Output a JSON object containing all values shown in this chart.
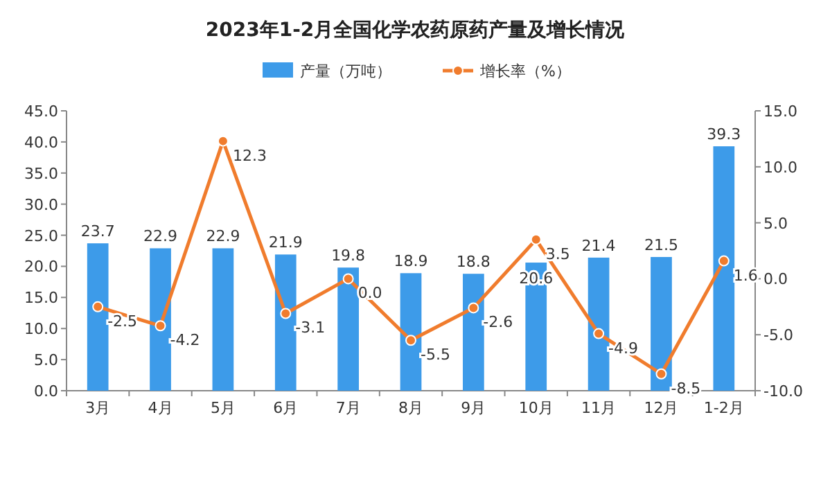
{
  "chart_data": {
    "type": "bar",
    "title": "2023年1-2月全国化学农药原药产量及增长情况",
    "categories": [
      "3月",
      "4月",
      "5月",
      "6月",
      "7月",
      "8月",
      "9月",
      "10月",
      "11月",
      "12月",
      "1-2月"
    ],
    "series": [
      {
        "name": "产量（万吨）",
        "color": "#3d9be9",
        "values": [
          23.7,
          22.9,
          22.9,
          21.9,
          19.8,
          18.9,
          18.8,
          20.6,
          21.4,
          21.5,
          39.3
        ],
        "value_labels": [
          "23.7",
          "22.9",
          "22.9",
          "21.9",
          "19.8",
          "18.9",
          "18.8",
          "20.6",
          "21.4",
          "21.5",
          "39.3"
        ]
      },
      {
        "name": "增长率（%）",
        "type": "line",
        "axis": "y2",
        "color": "#f07c2d",
        "marker": "circle",
        "values": [
          -2.5,
          -4.2,
          12.3,
          -3.1,
          0.0,
          -5.5,
          -2.6,
          3.5,
          -4.9,
          -8.5,
          1.6
        ],
        "value_labels": [
          "-2.5",
          "-4.2",
          "12.3",
          "-3.1",
          "0.0",
          "-5.5",
          "-2.6",
          "3.5",
          "-4.9",
          "-8.5",
          "1.6"
        ]
      }
    ],
    "ylim": [
      0,
      45
    ],
    "yticks": [
      {
        "value": 0,
        "label": "0.0"
      },
      {
        "value": 5,
        "label": "5.0"
      },
      {
        "value": 10,
        "label": "10.0"
      },
      {
        "value": 15,
        "label": "15.0"
      },
      {
        "value": 20,
        "label": "20.0"
      },
      {
        "value": 25,
        "label": "25.0"
      },
      {
        "value": 30,
        "label": "30.0"
      },
      {
        "value": 35,
        "label": "35.0"
      },
      {
        "value": 40,
        "label": "40.0"
      },
      {
        "value": 45,
        "label": "45.0"
      }
    ],
    "y2lim": [
      -10,
      15
    ],
    "y2ticks": [
      {
        "value": -10,
        "label": "-10.0"
      },
      {
        "value": -5,
        "label": "-5.0"
      },
      {
        "value": 0,
        "label": "0.0"
      },
      {
        "value": 5,
        "label": "5.0"
      },
      {
        "value": 10,
        "label": "10.0"
      },
      {
        "value": 15,
        "label": "15.0"
      }
    ],
    "legend": "top",
    "grid": false
  }
}
